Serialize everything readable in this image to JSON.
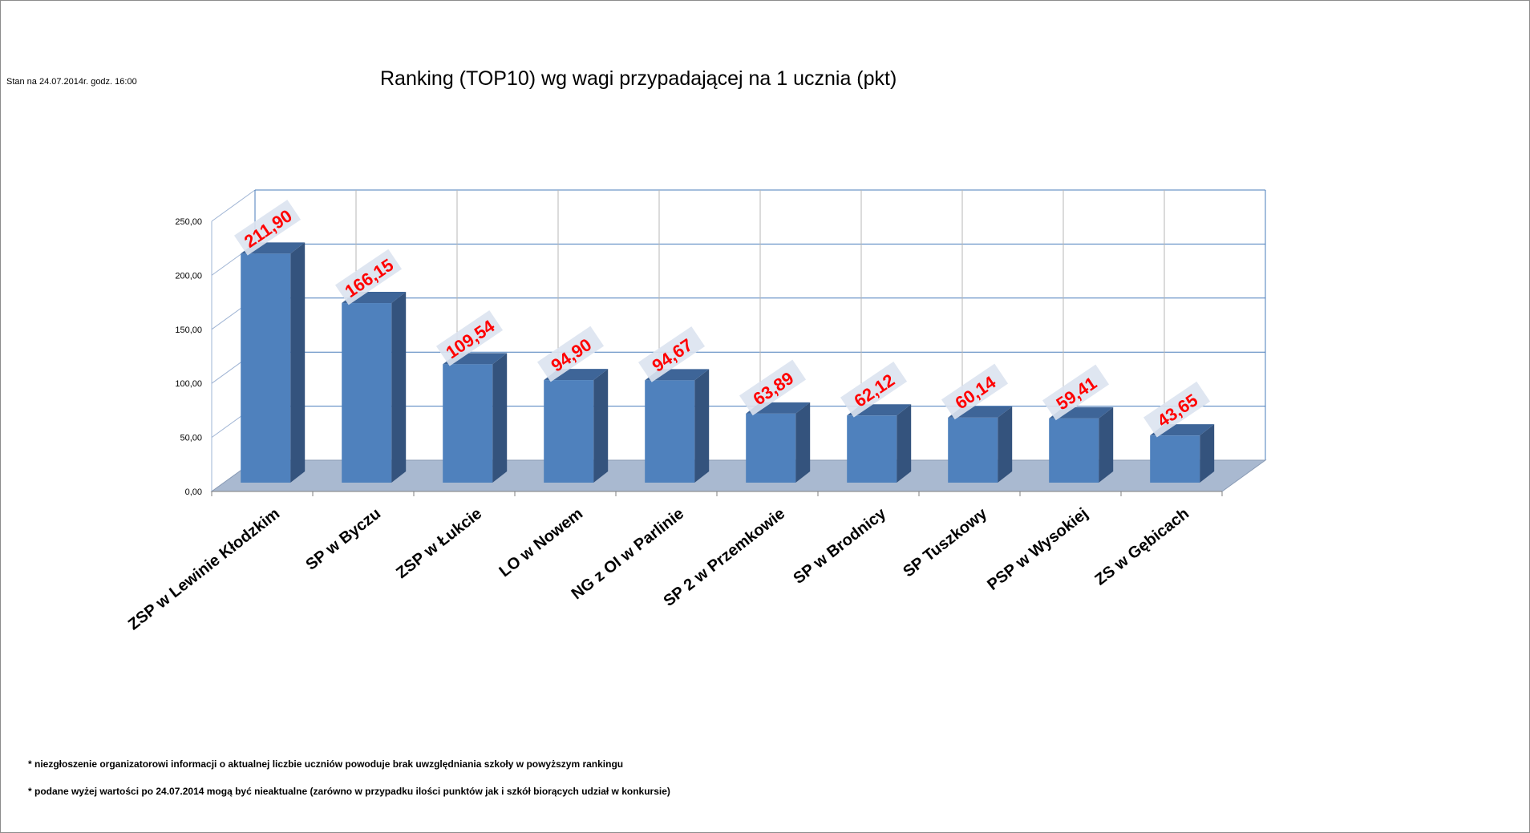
{
  "stamp": "Stan na 24.07.2014r.  godz. 16:00",
  "notes": [
    "*  niezgłoszenie organizatorowi informacji o aktualnej liczbie uczniów powoduje brak uwzględniania szkoły w powyższym rankingu",
    "*  podane wyżej wartości po 24.07.2014  mogą być nieaktualne (zarówno w przypadku ilości punktów jak i szkół biorących udział w konkursie)"
  ],
  "chart_data": {
    "type": "bar",
    "title": "Ranking (TOP10) wg wagi przypadającej na 1 ucznia (pkt)",
    "categories": [
      "ZSP w Lewinie Kłodzkim",
      "SP w Byczu",
      "ZSP w Łukcie",
      "LO w Nowem",
      "NG z OI w Parlinie",
      "SP 2 w Przemkowie",
      "SP w Brodnicy",
      "SP Tuszkowy",
      "PSP w Wysokiej",
      "ZS w Gębicach"
    ],
    "values": [
      211.9,
      166.15,
      109.54,
      94.9,
      94.67,
      63.89,
      62.12,
      60.14,
      59.41,
      43.65
    ],
    "value_labels": [
      "211,90",
      "166,15",
      "109,54",
      "94,90",
      "94,67",
      "63,89",
      "62,12",
      "60,14",
      "59,41",
      "43,65"
    ],
    "y_ticks": [
      "0,00",
      "50,00",
      "100,00",
      "150,00",
      "200,00",
      "250,00"
    ],
    "ylim": [
      0,
      250
    ],
    "grid": true,
    "style": "3d-column",
    "colors": {
      "bar_front": "#4f81bd",
      "bar_side": "#34537d",
      "bar_top": "#3e6598",
      "floor": "#a9b9d0",
      "grid": "#4a7ebb",
      "label_text": "#ff0000",
      "label_bg": "#dce3f0"
    }
  }
}
